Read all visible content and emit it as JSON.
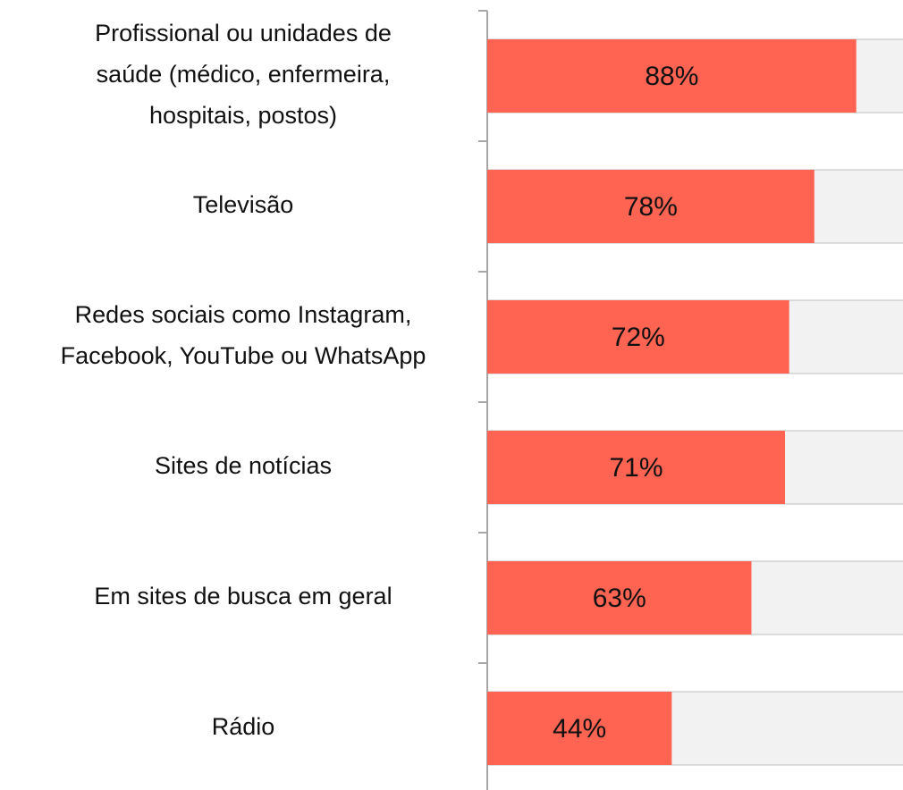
{
  "chart_data": {
    "type": "bar",
    "orientation": "horizontal",
    "categories": [
      "Profissional ou unidades de\nsaúde (médico, enfermeira,\nhospitais, postos)",
      "Televisão",
      "Redes sociais como Instagram,\nFacebook, YouTube ou WhatsApp",
      "Sites de notícias",
      "Em sites de busca em geral",
      "Rádio"
    ],
    "values": [
      88,
      78,
      72,
      71,
      63,
      44
    ],
    "value_labels": [
      "88%",
      "78%",
      "72%",
      "71%",
      "63%",
      "44%"
    ],
    "color": "#ff6352",
    "xlim": [
      0,
      100
    ]
  }
}
